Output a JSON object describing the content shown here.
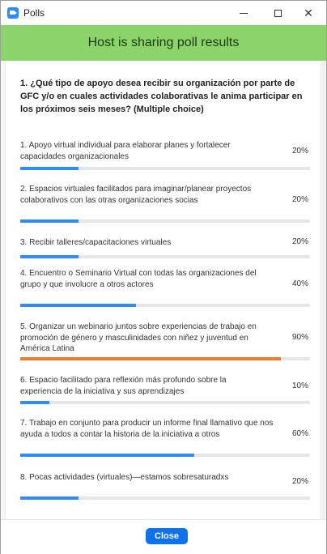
{
  "window": {
    "title": "Polls"
  },
  "banner": {
    "text": "Host is sharing poll results"
  },
  "poll": {
    "question": "1. ¿Qué tipo de apoyo desea recibir su organización por parte de GFC y/o en cuales actividades colaborativas le anima participar en los próximos seis meses? (Multiple choice)",
    "options": [
      {
        "text": "1. Apoyo virtual individual para elaborar planes y fortalecer capacidades organizacionales",
        "percent_label": "20%",
        "percent": 20
      },
      {
        "text": "2. Espacios virtuales facilitados para imaginar/planear proyectos colaborativos con las otras organizaciones socias",
        "percent_label": "20%",
        "percent": 20
      },
      {
        "text": "3. Recibir talleres/capacitaciones virtuales",
        "percent_label": "20%",
        "percent": 20
      },
      {
        "text": "4. Encuentro o Seminario Virtual con todas las organizaciones del grupo y que involucre a otros actores",
        "percent_label": "40%",
        "percent": 40
      },
      {
        "text": "5. Organizar un webinario juntos sobre experiencias de trabajo en promoción de género y masculinidades con niñez y juventud en América Latina",
        "percent_label": "90%",
        "percent": 90
      },
      {
        "text": "6. Espacio facilitado para reflexión más profundo sobre la experiencia de la iniciativa y sus aprendizajes",
        "percent_label": "10%",
        "percent": 10
      },
      {
        "text": "7. Trabajo en conjunto para producir un informe final llamativo que nos ayuda a todos a contar la historia de la iniciativa a otros",
        "percent_label": "60%",
        "percent": 60
      },
      {
        "text": "8. Pocas actividades (virtuales)—estamos sobresaturadxs",
        "percent_label": "20%",
        "percent": 20
      }
    ]
  },
  "footer": {
    "close_label": "Close"
  },
  "colors": {
    "banner": "#8bd46a",
    "bar_default": "#2d8cff",
    "bar_highest": "#ee7d2a",
    "close_button": "#0e72ed"
  }
}
